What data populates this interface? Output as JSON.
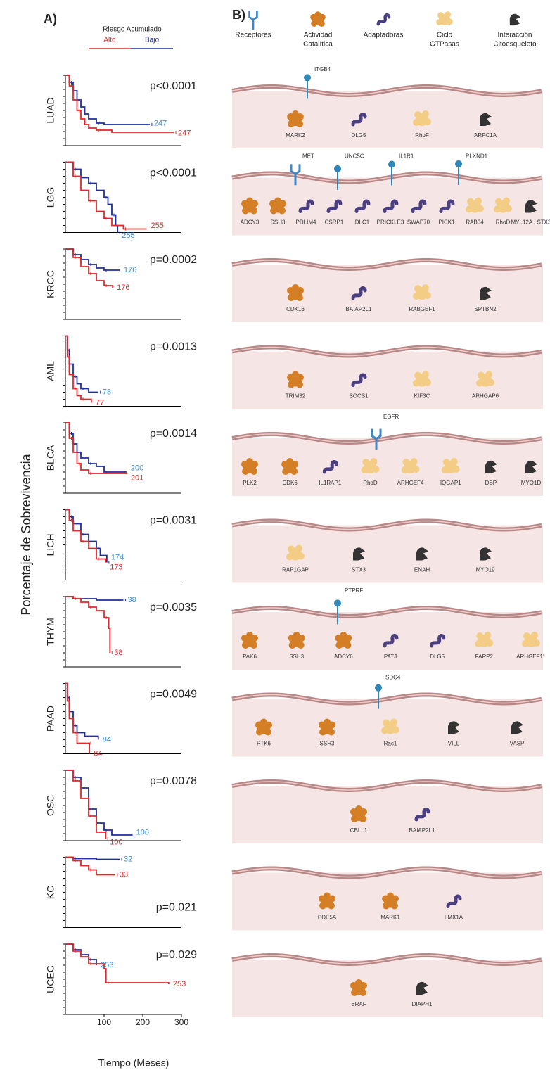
{
  "panel_labels": [
    "A)",
    "B)"
  ],
  "y_label": "Porcentaje de Sobrevivencia",
  "x_label": "Tiempo (Meses)",
  "legend": {
    "title": "Riesgo Acumulado",
    "items": [
      {
        "name": "Alto",
        "color": "#e8262a"
      },
      {
        "name": "Bajo",
        "color": "#1f2fa0"
      }
    ]
  },
  "chart_data": [
    {
      "type": "km",
      "title": "LUAD",
      "annotation": "p<0.0001",
      "xlim": [
        0,
        300
      ],
      "ylim": [
        0,
        1
      ],
      "series": [
        {
          "color": "#1f2fa0",
          "label_color": "#3b8fd6",
          "n": 247,
          "x": [
            0,
            10,
            20,
            30,
            40,
            50,
            60,
            80,
            100,
            218
          ],
          "values": [
            1,
            0.9,
            0.78,
            0.65,
            0.55,
            0.45,
            0.38,
            0.32,
            0.3,
            0.3
          ]
        },
        {
          "color": "#e8262a",
          "label_color": "#e8262a",
          "n": 247,
          "x": [
            0,
            10,
            20,
            30,
            40,
            50,
            60,
            80,
            120,
            280
          ],
          "values": [
            1,
            0.85,
            0.65,
            0.5,
            0.38,
            0.3,
            0.25,
            0.22,
            0.19,
            0.19
          ]
        }
      ]
    },
    {
      "type": "km",
      "title": "LGG",
      "annotation": "p<0.0001",
      "xlim": [
        0,
        300
      ],
      "ylim": [
        0,
        1
      ],
      "series": [
        {
          "color": "#1f2fa0",
          "label_color": "#3b8fd6",
          "n": 255,
          "x": [
            0,
            20,
            40,
            60,
            80,
            100,
            110,
            120,
            130,
            135
          ],
          "values": [
            1,
            0.9,
            0.78,
            0.7,
            0.6,
            0.5,
            0.4,
            0.25,
            0.1,
            0
          ]
        },
        {
          "color": "#e8262a",
          "label_color": "#e8262a",
          "n": 255,
          "x": [
            0,
            20,
            40,
            60,
            80,
            100,
            120,
            150,
            210
          ],
          "values": [
            1,
            0.8,
            0.6,
            0.45,
            0.3,
            0.2,
            0.1,
            0.05,
            0.05
          ]
        }
      ]
    },
    {
      "type": "km",
      "title": "KRCC",
      "annotation": "p=0.0002",
      "xlim": [
        0,
        300
      ],
      "ylim": [
        0,
        1
      ],
      "series": [
        {
          "color": "#1f2fa0",
          "label_color": "#3b8fd6",
          "n": 176,
          "x": [
            0,
            20,
            40,
            60,
            80,
            100,
            140
          ],
          "values": [
            1,
            0.92,
            0.85,
            0.78,
            0.73,
            0.7,
            0.7
          ]
        },
        {
          "color": "#e8262a",
          "label_color": "#e8262a",
          "n": 176,
          "x": [
            0,
            20,
            40,
            60,
            80,
            100,
            122
          ],
          "values": [
            1,
            0.88,
            0.75,
            0.65,
            0.55,
            0.48,
            0.45
          ]
        }
      ]
    },
    {
      "type": "km",
      "title": "AML",
      "annotation": "p=0.0013",
      "xlim": [
        0,
        300
      ],
      "ylim": [
        0,
        1
      ],
      "series": [
        {
          "color": "#1f2fa0",
          "label_color": "#3b8fd6",
          "n": 78,
          "x": [
            0,
            5,
            10,
            20,
            30,
            40,
            60,
            85
          ],
          "values": [
            1,
            0.8,
            0.6,
            0.42,
            0.32,
            0.25,
            0.2,
            0.2
          ]
        },
        {
          "color": "#e8262a",
          "label_color": "#e8262a",
          "n": 77,
          "x": [
            0,
            5,
            10,
            20,
            30,
            40,
            67
          ],
          "values": [
            1,
            0.7,
            0.45,
            0.25,
            0.15,
            0.1,
            0.05
          ]
        }
      ]
    },
    {
      "type": "km",
      "title": "BLCA",
      "annotation": "p=0.0014",
      "xlim": [
        0,
        300
      ],
      "ylim": [
        0,
        1
      ],
      "series": [
        {
          "color": "#1f2fa0",
          "label_color": "#3b8fd6",
          "n": 200,
          "x": [
            0,
            10,
            20,
            30,
            40,
            60,
            80,
            100,
            158
          ],
          "values": [
            1,
            0.85,
            0.7,
            0.58,
            0.5,
            0.42,
            0.38,
            0.3,
            0.3
          ]
        },
        {
          "color": "#e8262a",
          "label_color": "#e8262a",
          "n": 201,
          "x": [
            0,
            10,
            20,
            30,
            40,
            60,
            158
          ],
          "values": [
            1,
            0.78,
            0.58,
            0.42,
            0.33,
            0.28,
            0.27
          ]
        }
      ]
    },
    {
      "type": "km",
      "title": "LICH",
      "annotation": "p=0.0031",
      "xlim": [
        0,
        300
      ],
      "ylim": [
        0,
        1
      ],
      "series": [
        {
          "color": "#1f2fa0",
          "label_color": "#3b8fd6",
          "n": 174,
          "x": [
            0,
            10,
            20,
            40,
            60,
            80,
            90,
            107
          ],
          "values": [
            1,
            0.9,
            0.8,
            0.65,
            0.55,
            0.45,
            0.35,
            0.25
          ]
        },
        {
          "color": "#e8262a",
          "label_color": "#e8262a",
          "n": 173,
          "x": [
            0,
            10,
            20,
            40,
            60,
            80,
            104
          ],
          "values": [
            1,
            0.85,
            0.7,
            0.55,
            0.45,
            0.3,
            0.25
          ]
        }
      ]
    },
    {
      "type": "km",
      "title": "THYM",
      "annotation": "p=0.0035",
      "xlim": [
        0,
        300
      ],
      "ylim": [
        0,
        1
      ],
      "series": [
        {
          "color": "#1f2fa0",
          "label_color": "#3b8fd6",
          "n": 38,
          "x": [
            0,
            20,
            80,
            150
          ],
          "values": [
            1,
            0.97,
            0.95,
            0.95
          ]
        },
        {
          "color": "#e8262a",
          "label_color": "#e8262a",
          "n": 38,
          "x": [
            0,
            20,
            40,
            60,
            80,
            100,
            112,
            115
          ],
          "values": [
            1,
            0.97,
            0.92,
            0.85,
            0.8,
            0.7,
            0.55,
            0.2
          ]
        }
      ]
    },
    {
      "type": "km",
      "title": "PAAD",
      "annotation": "p=0.0049",
      "xlim": [
        0,
        300
      ],
      "ylim": [
        0,
        1
      ],
      "series": [
        {
          "color": "#1f2fa0",
          "label_color": "#3b8fd6",
          "n": 84,
          "x": [
            0,
            5,
            10,
            20,
            30,
            50,
            85
          ],
          "values": [
            1,
            0.8,
            0.6,
            0.4,
            0.3,
            0.25,
            0.2
          ]
        },
        {
          "color": "#e8262a",
          "label_color": "#e8262a",
          "n": 84,
          "x": [
            0,
            5,
            10,
            20,
            30,
            60,
            62
          ],
          "values": [
            1,
            0.75,
            0.5,
            0.3,
            0.15,
            0.15,
            0
          ]
        }
      ]
    },
    {
      "type": "km",
      "title": "OSC",
      "annotation": "p=0.0078",
      "xlim": [
        0,
        300
      ],
      "ylim": [
        0,
        1
      ],
      "series": [
        {
          "color": "#1f2fa0",
          "label_color": "#3b8fd6",
          "n": 100,
          "x": [
            0,
            20,
            40,
            60,
            80,
            100,
            120,
            172
          ],
          "values": [
            1,
            0.9,
            0.75,
            0.45,
            0.25,
            0.15,
            0.08,
            0.06
          ]
        },
        {
          "color": "#e8262a",
          "label_color": "#e8262a",
          "n": 100,
          "x": [
            0,
            20,
            40,
            60,
            80,
            104
          ],
          "values": [
            1,
            0.85,
            0.6,
            0.35,
            0.12,
            0.03
          ]
        }
      ]
    },
    {
      "type": "km",
      "title": "KC",
      "annotation": "p=0.021",
      "xlim": [
        0,
        300
      ],
      "ylim": [
        0,
        1
      ],
      "series": [
        {
          "color": "#1f2fa0",
          "label_color": "#3b8fd6",
          "n": 32,
          "x": [
            0,
            20,
            80,
            140
          ],
          "values": [
            1,
            0.98,
            0.97,
            0.97
          ]
        },
        {
          "color": "#e8262a",
          "label_color": "#e8262a",
          "n": 33,
          "x": [
            0,
            20,
            40,
            60,
            80,
            129
          ],
          "values": [
            1,
            0.95,
            0.88,
            0.82,
            0.75,
            0.75
          ]
        }
      ]
    },
    {
      "type": "km",
      "title": "UCEC",
      "annotation": "p=0.029",
      "xlim": [
        0,
        300
      ],
      "ylim": [
        0,
        1
      ],
      "xticks": [
        100,
        200,
        300
      ],
      "series": [
        {
          "color": "#1f2fa0",
          "label_color": "#3b8fd6",
          "n": 253,
          "x": [
            0,
            20,
            40,
            60,
            80
          ],
          "values": [
            1,
            0.92,
            0.85,
            0.78,
            0.7
          ]
        },
        {
          "color": "#e8262a",
          "label_color": "#e8262a",
          "n": 253,
          "x": [
            0,
            20,
            40,
            60,
            100,
            105,
            267
          ],
          "values": [
            1,
            0.9,
            0.82,
            0.72,
            0.65,
            0.45,
            0.43
          ]
        }
      ]
    }
  ],
  "diagram": {
    "legend": [
      {
        "kind": "y",
        "label": [
          "Receptores"
        ]
      },
      {
        "kind": "cat",
        "label": [
          "Actividad",
          "Catalítica"
        ]
      },
      {
        "kind": "ad",
        "label": [
          "Adaptadoras"
        ]
      },
      {
        "kind": "gtp",
        "label": [
          "Ciclo",
          "GTPasas"
        ]
      },
      {
        "kind": "cyto",
        "label": [
          "Interacción",
          "Citoesqueleto"
        ]
      }
    ],
    "rows": [
      {
        "receptors": [
          {
            "kind": "pin",
            "label": "ITGB4"
          }
        ],
        "proteins": [
          {
            "kind": "cat",
            "label": "MARK2"
          },
          {
            "kind": "ad",
            "label": "DLG5"
          },
          {
            "kind": "gtp",
            "label": "RhoF"
          },
          {
            "kind": "cyto",
            "label": "ARPC1A"
          }
        ]
      },
      {
        "receptors": [
          {
            "kind": "y",
            "label": "MET"
          },
          {
            "kind": "pin",
            "label": "UNC5C"
          },
          {
            "kind": "pin",
            "label": "IL1R1"
          },
          {
            "kind": "pin",
            "label": "PLXND1"
          }
        ],
        "proteins": [
          {
            "kind": "cat",
            "label": "ADCY3"
          },
          {
            "kind": "cat",
            "label": "SSH3"
          },
          {
            "kind": "ad",
            "label": "PDLIM4"
          },
          {
            "kind": "ad",
            "label": "CSRP1"
          },
          {
            "kind": "ad",
            "label": "DLC1"
          },
          {
            "kind": "ad",
            "label": "PRICKLE3"
          },
          {
            "kind": "ad",
            "label": "SWAP70"
          },
          {
            "kind": "ad",
            "label": "PICK1"
          },
          {
            "kind": "gtp",
            "label": "RAB34"
          },
          {
            "kind": "gtp",
            "label": "RhoD"
          },
          {
            "kind": "cyto",
            "label": "MYL12A , STX3"
          }
        ]
      },
      {
        "receptors": [],
        "proteins": [
          {
            "kind": "cat",
            "label": "CDK16"
          },
          {
            "kind": "ad",
            "label": "BAIAP2L1"
          },
          {
            "kind": "gtp",
            "label": "RABGEF1"
          },
          {
            "kind": "cyto",
            "label": "SPTBN2"
          }
        ]
      },
      {
        "receptors": [],
        "proteins": [
          {
            "kind": "cat",
            "label": "TRIM32"
          },
          {
            "kind": "ad",
            "label": "SOCS1"
          },
          {
            "kind": "gtp",
            "label": "KIF3C"
          },
          {
            "kind": "gtp",
            "label": "ARHGAP6"
          }
        ]
      },
      {
        "receptors": [
          {
            "kind": "y",
            "label": "EGFR"
          }
        ],
        "proteins": [
          {
            "kind": "cat",
            "label": "PLK2"
          },
          {
            "kind": "cat",
            "label": "CDK6"
          },
          {
            "kind": "ad",
            "label": "IL1RAP1"
          },
          {
            "kind": "gtp",
            "label": "RhoD"
          },
          {
            "kind": "gtp",
            "label": "ARHGEF4"
          },
          {
            "kind": "gtp",
            "label": "IQGAP1"
          },
          {
            "kind": "cyto",
            "label": "DSP"
          },
          {
            "kind": "cyto",
            "label": "MYO1D"
          }
        ]
      },
      {
        "receptors": [],
        "proteins": [
          {
            "kind": "gtp",
            "label": "RAP1GAP"
          },
          {
            "kind": "cyto",
            "label": "STX3"
          },
          {
            "kind": "cyto",
            "label": "ENAH"
          },
          {
            "kind": "cyto",
            "label": "MYO19"
          }
        ]
      },
      {
        "receptors": [
          {
            "kind": "pin",
            "label": "PTPRF"
          }
        ],
        "proteins": [
          {
            "kind": "cat",
            "label": "PAK6"
          },
          {
            "kind": "cat",
            "label": "SSH3"
          },
          {
            "kind": "cat",
            "label": "ADCY6"
          },
          {
            "kind": "ad",
            "label": "PATJ"
          },
          {
            "kind": "ad",
            "label": "DLG5"
          },
          {
            "kind": "gtp",
            "label": "FARP2"
          },
          {
            "kind": "gtp",
            "label": "ARHGEF11"
          }
        ]
      },
      {
        "receptors": [
          {
            "kind": "pin",
            "label": "SDC4"
          }
        ],
        "proteins": [
          {
            "kind": "cat",
            "label": "PTK6"
          },
          {
            "kind": "cat",
            "label": "SSH3"
          },
          {
            "kind": "gtp",
            "label": "Rac1"
          },
          {
            "kind": "cyto",
            "label": "VILL"
          },
          {
            "kind": "cyto",
            "label": "VASP"
          }
        ]
      },
      {
        "receptors": [],
        "proteins": [
          {
            "kind": "cat",
            "label": "CBLL1"
          },
          {
            "kind": "ad",
            "label": "BAIAP2L1"
          }
        ]
      },
      {
        "receptors": [],
        "proteins": [
          {
            "kind": "cat",
            "label": "PDE5A"
          },
          {
            "kind": "cat",
            "label": "MARK1"
          },
          {
            "kind": "ad",
            "label": "LMX1A"
          }
        ]
      },
      {
        "receptors": [],
        "proteins": [
          {
            "kind": "cat",
            "label": "BRAF"
          },
          {
            "kind": "cyto",
            "label": "DIAPH1"
          }
        ]
      }
    ]
  }
}
